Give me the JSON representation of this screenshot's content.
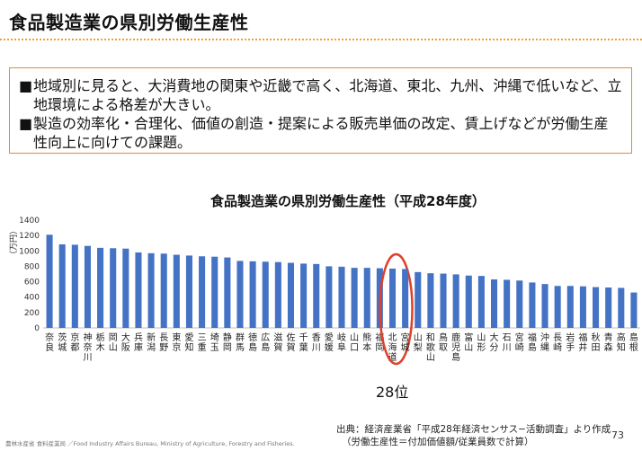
{
  "slide": {
    "title": "食品製造業の県別労働生産性",
    "bullets": [
      {
        "mark": "■",
        "text": "地域別に見ると、大消費地の関東や近畿で高く、北海道、東北、九州、沖縄で低いなど、立地環境による格差が大きい。"
      },
      {
        "mark": "■",
        "text": "製造の効率化・合理化、価値の創造・提案による販売単価の改定、賃上げなどが労働生産性向上に向けての課題。"
      }
    ],
    "rank_note": "28位",
    "source_line1": "出典：経済産業省「平成28年経済センサス−活動調査」より作成",
    "source_line2": "（労働生産性＝付加価値額/従業員数で計算）",
    "footer_left": "農林水産省 食料産業局 ／Food Industry Affairs Bureau,  Ministry of Agriculture, Forestry and Fisheries.",
    "page_number": "73"
  },
  "colors": {
    "bar": "#4472c4",
    "highlight_ellipse": "#e0402a",
    "box_border": "#e48a35",
    "title_rule": "#f0a030"
  },
  "chart_data": {
    "type": "bar",
    "title": "食品製造業の県別労働生産性（平成28年度）",
    "ylabel": "（万円）",
    "ylim": [
      0,
      1400
    ],
    "yticks": [
      0,
      200,
      400,
      600,
      800,
      1000,
      1200,
      1400
    ],
    "grid": false,
    "highlight_category": "北海道",
    "categories": [
      "奈良",
      "茨城",
      "京都",
      "神奈川",
      "栃木",
      "岡山",
      "大阪",
      "兵庫",
      "新潟",
      "長野",
      "東京",
      "愛知",
      "三重",
      "埼玉",
      "静岡",
      "群馬",
      "徳島",
      "広島",
      "滋賀",
      "佐賀",
      "千葉",
      "香川",
      "愛媛",
      "岐阜",
      "山口",
      "熊本",
      "福岡",
      "北海道",
      "宮城",
      "山梨",
      "和歌山",
      "鳥取",
      "鹿児島",
      "富山",
      "山形",
      "大分",
      "石川",
      "宮崎",
      "福島",
      "沖縄",
      "長崎",
      "岩手",
      "福井",
      "秋田",
      "青森",
      "高知",
      "島根"
    ],
    "values": [
      1210,
      1085,
      1080,
      1065,
      1040,
      1035,
      1030,
      980,
      970,
      965,
      950,
      940,
      930,
      925,
      915,
      870,
      865,
      860,
      855,
      845,
      835,
      830,
      800,
      795,
      780,
      780,
      775,
      770,
      765,
      725,
      710,
      705,
      695,
      680,
      675,
      630,
      625,
      615,
      590,
      570,
      545,
      545,
      540,
      530,
      525,
      520,
      460
    ]
  }
}
